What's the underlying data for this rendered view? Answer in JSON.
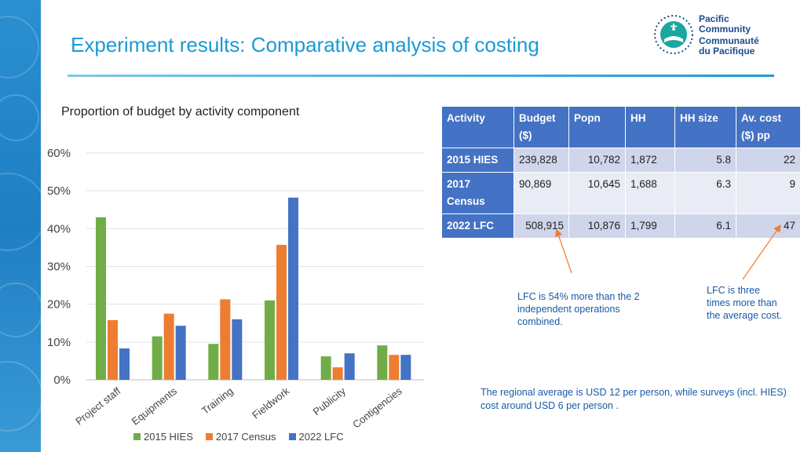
{
  "slide": {
    "title": "Experiment results: Comparative analysis of costing",
    "logo_line1": "Pacific",
    "logo_line2": "Community",
    "logo_line3": "Communauté",
    "logo_line4": "du Pacifique"
  },
  "chart_data": {
    "type": "bar",
    "title": "Proportion of budget by activity component",
    "categories": [
      "Project staff",
      "Equipments",
      "Training",
      "Fieldwork",
      "Publicity",
      "Contigencies"
    ],
    "series": [
      {
        "name": "2015 HIES",
        "color": "#70ad47",
        "values": [
          43,
          11.5,
          9.5,
          21,
          6.2,
          9.1
        ]
      },
      {
        "name": "2017 Census",
        "color": "#ed7d31",
        "values": [
          15.8,
          17.5,
          21.3,
          35.7,
          3.3,
          6.6
        ]
      },
      {
        "name": "2022 LFC",
        "color": "#4472c4",
        "values": [
          8.3,
          14.3,
          16,
          48.2,
          7,
          6.6
        ]
      }
    ],
    "yticks": [
      "0%",
      "10%",
      "20%",
      "30%",
      "40%",
      "50%",
      "60%"
    ],
    "ylim": [
      0,
      60
    ],
    "grid": true,
    "legend": "bottom"
  },
  "table": {
    "headers": [
      "Activity",
      "Budget ($)",
      "Popn",
      "HH",
      "HH size",
      "Av. cost ($) pp"
    ],
    "rows": [
      [
        "2015 HIES",
        "239,828",
        "10,782",
        "1,872",
        "5.8",
        "22"
      ],
      [
        "2017 Census",
        "90,869",
        "10,645",
        "1,688",
        "6.3",
        "9"
      ],
      [
        "2022 LFC",
        "508,915",
        "10,876",
        "1,799",
        "6.1",
        "47"
      ]
    ]
  },
  "annotations": {
    "lfc_combined": "LFC is 54% more than the 2 independent operations combined.",
    "lfc_three_times": "LFC is three times more than the average cost.",
    "regional_average": "The regional average is USD 12 per person, while surveys (incl. HIES) cost around USD 6 per person ."
  },
  "colors": {
    "title": "#1a9ad6",
    "table_header": "#4472c4",
    "annotation": "#1a5aa6"
  }
}
